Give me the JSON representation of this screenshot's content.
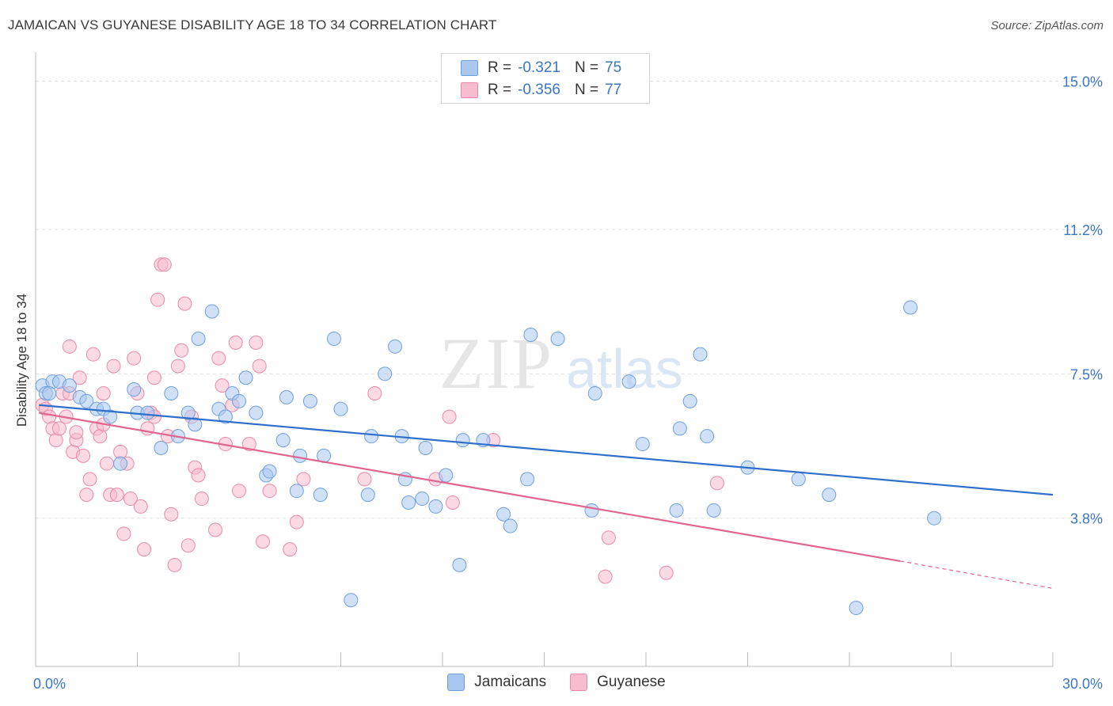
{
  "title": "JAMAICAN VS GUYANESE DISABILITY AGE 18 TO 34 CORRELATION CHART",
  "source": "Source: ZipAtlas.com",
  "colors": {
    "blue_fill": "#a9c8f0",
    "blue_stroke": "#6f9fdc",
    "blue_line": "#2f6fcc",
    "pink_fill": "#f7bccd",
    "pink_stroke": "#e98aa8",
    "pink_line": "#e0668f",
    "grid": "#dddddd",
    "tick_label": "#3a76c4"
  },
  "legend": {
    "rows": [
      {
        "r_label": "R =",
        "r_value": "-0.321",
        "n_label": "N =",
        "n_value": "75",
        "color": "#a9c8f0"
      },
      {
        "r_label": "R =",
        "r_value": "-0.356",
        "n_label": "N =",
        "n_value": "77",
        "color": "#f7bccd"
      }
    ]
  },
  "bottom_legend": [
    {
      "label": "Jamaicans",
      "color": "#a9c8f0"
    },
    {
      "label": "Guyanese",
      "color": "#f7bccd"
    }
  ],
  "chart_data": {
    "type": "scatter",
    "title": "JAMAICAN VS GUYANESE DISABILITY AGE 18 TO 34 CORRELATION CHART",
    "xlabel": "",
    "ylabel": "Disability Age 18 to 34",
    "xlim": [
      0,
      30
    ],
    "ylim": [
      0,
      15.5
    ],
    "x_tick_labels": [
      "0.0%",
      "30.0%"
    ],
    "y_ticks": [
      3.8,
      7.5,
      11.2,
      15.0
    ],
    "y_tick_labels": [
      "3.8%",
      "7.5%",
      "11.2%",
      "15.0%"
    ],
    "grid": "horizontal dashed",
    "watermark": "ZIPatlas",
    "series": [
      {
        "name": "Jamaicans",
        "r": -0.321,
        "n": 75,
        "trend": {
          "x": [
            0.1,
            30.0
          ],
          "y": [
            6.7,
            4.4
          ]
        },
        "points": [
          [
            0.2,
            7.2
          ],
          [
            0.3,
            7.0
          ],
          [
            0.5,
            7.3
          ],
          [
            0.7,
            7.3
          ],
          [
            1.0,
            7.2
          ],
          [
            1.3,
            6.9
          ],
          [
            1.5,
            6.8
          ],
          [
            1.8,
            6.6
          ],
          [
            2.0,
            6.6
          ],
          [
            2.2,
            6.4
          ],
          [
            2.5,
            5.2
          ],
          [
            2.9,
            7.1
          ],
          [
            3.0,
            6.5
          ],
          [
            3.3,
            6.5
          ],
          [
            3.7,
            5.6
          ],
          [
            4.0,
            7.0
          ],
          [
            4.2,
            5.9
          ],
          [
            4.5,
            6.5
          ],
          [
            4.7,
            6.2
          ],
          [
            4.8,
            8.4
          ],
          [
            5.2,
            9.1
          ],
          [
            5.4,
            6.6
          ],
          [
            5.6,
            6.4
          ],
          [
            5.8,
            7.0
          ],
          [
            6.0,
            6.8
          ],
          [
            6.2,
            7.4
          ],
          [
            6.5,
            6.5
          ],
          [
            6.8,
            4.9
          ],
          [
            6.9,
            5.0
          ],
          [
            7.3,
            5.8
          ],
          [
            7.4,
            6.9
          ],
          [
            7.7,
            4.5
          ],
          [
            7.8,
            5.4
          ],
          [
            8.1,
            6.8
          ],
          [
            8.4,
            4.4
          ],
          [
            8.5,
            5.4
          ],
          [
            8.8,
            8.4
          ],
          [
            9.0,
            6.6
          ],
          [
            9.3,
            1.7
          ],
          [
            9.8,
            4.4
          ],
          [
            9.9,
            5.9
          ],
          [
            10.3,
            7.5
          ],
          [
            10.6,
            8.2
          ],
          [
            10.8,
            5.9
          ],
          [
            10.9,
            4.8
          ],
          [
            11.0,
            4.2
          ],
          [
            11.4,
            4.3
          ],
          [
            11.5,
            5.6
          ],
          [
            11.8,
            4.1
          ],
          [
            12.1,
            4.9
          ],
          [
            12.5,
            2.6
          ],
          [
            12.6,
            5.8
          ],
          [
            13.2,
            5.8
          ],
          [
            13.8,
            3.9
          ],
          [
            14.0,
            3.6
          ],
          [
            14.5,
            4.8
          ],
          [
            14.6,
            8.5
          ],
          [
            15.4,
            8.4
          ],
          [
            16.4,
            4.0
          ],
          [
            16.5,
            7.0
          ],
          [
            17.5,
            7.3
          ],
          [
            17.9,
            5.7
          ],
          [
            18.9,
            4.0
          ],
          [
            19.0,
            6.1
          ],
          [
            19.3,
            6.8
          ],
          [
            19.6,
            8.0
          ],
          [
            19.8,
            5.9
          ],
          [
            20.0,
            4.0
          ],
          [
            21.0,
            5.1
          ],
          [
            22.5,
            4.8
          ],
          [
            23.4,
            4.4
          ],
          [
            24.2,
            1.5
          ],
          [
            25.8,
            9.2
          ],
          [
            26.5,
            3.8
          ],
          [
            0.4,
            7.0
          ]
        ]
      },
      {
        "name": "Guyanese",
        "r": -0.356,
        "n": 77,
        "trend": {
          "x": [
            0.1,
            25.5
          ],
          "y": [
            6.5,
            2.7
          ]
        },
        "trend_dashed": {
          "x": [
            25.5,
            30.0
          ],
          "y": [
            2.7,
            2.0
          ]
        },
        "points": [
          [
            0.2,
            6.7
          ],
          [
            0.3,
            6.6
          ],
          [
            0.4,
            6.4
          ],
          [
            0.5,
            6.1
          ],
          [
            0.6,
            5.8
          ],
          [
            0.7,
            6.1
          ],
          [
            0.8,
            7.0
          ],
          [
            0.9,
            6.4
          ],
          [
            1.0,
            8.2
          ],
          [
            1.1,
            5.5
          ],
          [
            1.2,
            5.8
          ],
          [
            1.3,
            7.4
          ],
          [
            1.4,
            5.4
          ],
          [
            1.5,
            4.4
          ],
          [
            1.6,
            4.8
          ],
          [
            1.7,
            8.0
          ],
          [
            1.8,
            6.1
          ],
          [
            1.9,
            5.9
          ],
          [
            2.0,
            7.0
          ],
          [
            2.1,
            5.2
          ],
          [
            2.2,
            4.4
          ],
          [
            2.3,
            7.7
          ],
          [
            2.4,
            4.4
          ],
          [
            2.5,
            5.5
          ],
          [
            2.6,
            3.4
          ],
          [
            2.7,
            5.2
          ],
          [
            2.8,
            4.3
          ],
          [
            2.9,
            7.9
          ],
          [
            3.0,
            7.0
          ],
          [
            3.1,
            4.1
          ],
          [
            3.2,
            3.0
          ],
          [
            3.3,
            6.1
          ],
          [
            3.4,
            6.5
          ],
          [
            3.5,
            7.4
          ],
          [
            3.6,
            9.4
          ],
          [
            3.7,
            10.3
          ],
          [
            3.8,
            10.3
          ],
          [
            3.9,
            5.9
          ],
          [
            4.0,
            3.9
          ],
          [
            4.1,
            2.6
          ],
          [
            4.2,
            7.7
          ],
          [
            4.3,
            8.1
          ],
          [
            4.4,
            9.3
          ],
          [
            4.5,
            3.1
          ],
          [
            4.6,
            6.4
          ],
          [
            4.7,
            5.1
          ],
          [
            4.8,
            4.9
          ],
          [
            4.9,
            4.3
          ],
          [
            5.3,
            3.5
          ],
          [
            5.4,
            7.9
          ],
          [
            5.5,
            7.2
          ],
          [
            5.6,
            5.7
          ],
          [
            5.8,
            6.7
          ],
          [
            5.9,
            8.3
          ],
          [
            6.0,
            4.5
          ],
          [
            6.3,
            5.7
          ],
          [
            6.5,
            8.3
          ],
          [
            6.6,
            7.7
          ],
          [
            6.7,
            3.2
          ],
          [
            6.9,
            4.5
          ],
          [
            7.5,
            3.0
          ],
          [
            7.7,
            3.7
          ],
          [
            7.9,
            4.8
          ],
          [
            9.7,
            4.8
          ],
          [
            10.0,
            7.0
          ],
          [
            11.8,
            4.8
          ],
          [
            12.2,
            6.4
          ],
          [
            12.3,
            4.2
          ],
          [
            13.5,
            5.8
          ],
          [
            16.8,
            2.3
          ],
          [
            16.9,
            3.3
          ],
          [
            18.6,
            2.4
          ],
          [
            20.1,
            4.7
          ],
          [
            1.0,
            7.0
          ],
          [
            1.2,
            6.0
          ],
          [
            2.0,
            6.2
          ],
          [
            3.5,
            6.4
          ]
        ]
      }
    ]
  }
}
